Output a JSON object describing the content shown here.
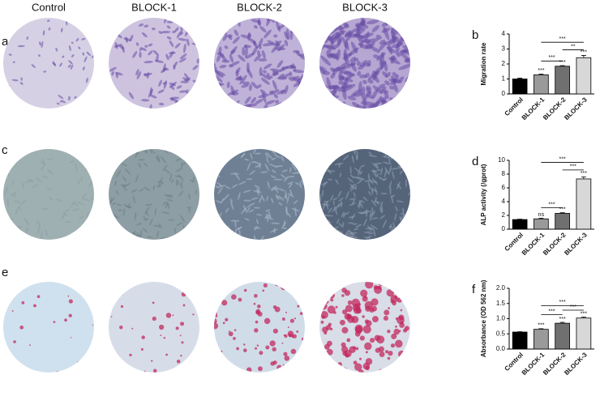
{
  "column_labels": [
    "Control",
    "BLOCK-1",
    "BLOCK-2",
    "BLOCK-3"
  ],
  "image_rows": [
    {
      "panel": "a"
    },
    {
      "panel": "c"
    },
    {
      "panel": "e"
    }
  ],
  "chart_data": [
    {
      "type": "bar",
      "panel": "b",
      "ylabel": "Migration rate",
      "categories": [
        "Control",
        "BLOCK-1",
        "BLOCK-2",
        "BLOCK-3"
      ],
      "values": [
        1.0,
        1.28,
        1.85,
        2.42
      ],
      "errors": [
        0.05,
        0.05,
        0.04,
        0.15
      ],
      "value_labels": [
        null,
        "***",
        "***",
        "***"
      ],
      "colors": [
        "#000000",
        "#9a9a9a",
        "#707070",
        "#d8d8d8"
      ],
      "ylim": [
        0,
        4
      ],
      "yticks": [
        0,
        1,
        2,
        3,
        4
      ],
      "brackets": [
        {
          "pair": [
            1,
            2
          ],
          "y": 2.2,
          "label": "***"
        },
        {
          "pair": [
            2,
            3
          ],
          "y": 2.95,
          "label": "**"
        },
        {
          "pair": [
            1,
            3
          ],
          "y": 3.45,
          "label": "***"
        }
      ]
    },
    {
      "type": "bar",
      "panel": "d",
      "ylabel": "ALP activity (/gprot)",
      "categories": [
        "Control",
        "BLOCK-1",
        "BLOCK-2",
        "BLOCK-3"
      ],
      "values": [
        1.4,
        1.5,
        2.3,
        7.3
      ],
      "errors": [
        0.05,
        0.1,
        0.1,
        0.3
      ],
      "value_labels": [
        null,
        "ns",
        "***",
        "***"
      ],
      "colors": [
        "#000000",
        "#9a9a9a",
        "#707070",
        "#d8d8d8"
      ],
      "ylim": [
        0,
        10
      ],
      "yticks": [
        0,
        2,
        4,
        6,
        8,
        10
      ],
      "brackets": [
        {
          "pair": [
            1,
            2
          ],
          "y": 3.1,
          "label": "***"
        },
        {
          "pair": [
            2,
            3
          ],
          "y": 8.6,
          "label": "***"
        },
        {
          "pair": [
            1,
            3
          ],
          "y": 9.7,
          "label": "***"
        }
      ]
    },
    {
      "type": "bar",
      "panel": "f",
      "ylabel": "Absorbance (OD 562 nm)",
      "categories": [
        "Control",
        "BLOCK-1",
        "BLOCK-2",
        "BLOCK-3"
      ],
      "values": [
        0.56,
        0.65,
        0.85,
        1.02
      ],
      "errors": [
        0.01,
        0.02,
        0.03,
        0.03
      ],
      "value_labels": [
        null,
        "***",
        "***",
        "***"
      ],
      "colors": [
        "#000000",
        "#9a9a9a",
        "#707070",
        "#d8d8d8"
      ],
      "ylim": [
        0,
        2.0
      ],
      "yticks": [
        {
          "value": 0,
          "label": "0.0"
        },
        {
          "value": 0.5,
          "label": "0.5"
        },
        {
          "value": 1.0,
          "label": "1.0"
        },
        {
          "value": 1.5,
          "label": "1.5"
        },
        {
          "value": 2.0,
          "label": "2.0"
        }
      ],
      "brackets": [
        {
          "pair": [
            1,
            2
          ],
          "y": 1.13,
          "label": "***"
        },
        {
          "pair": [
            2,
            3
          ],
          "y": 1.28,
          "label": "***"
        },
        {
          "pair": [
            1,
            3
          ],
          "y": 1.43,
          "label": "***"
        }
      ]
    }
  ]
}
